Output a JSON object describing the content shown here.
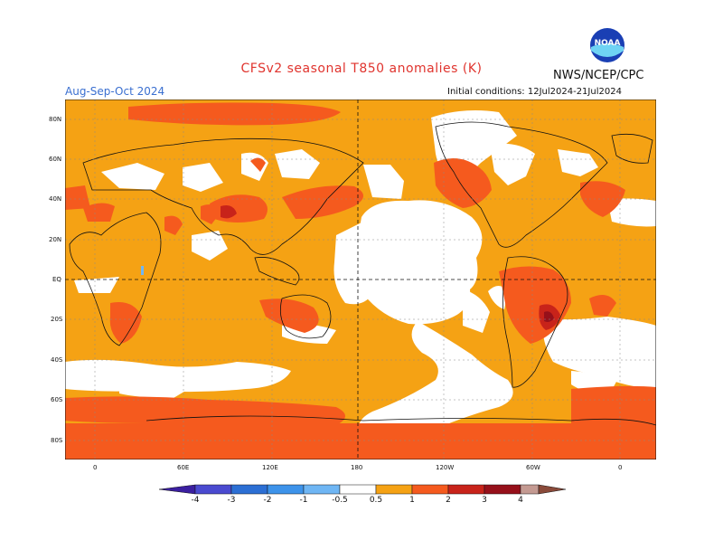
{
  "title": "CFSv2 seasonal T850 anomalies (K)",
  "organization": "NWS/NCEP/CPC",
  "logo_text": "NOAA",
  "period": "Aug-Sep-Oct 2024",
  "initial_conditions": "Initial conditions: 12Jul2024-21Jul2024",
  "lat_labels": [
    "80N",
    "60N",
    "40N",
    "20N",
    "EQ",
    "20S",
    "40S",
    "60S",
    "80S"
  ],
  "lon_labels": [
    "0",
    "60E",
    "120E",
    "180",
    "120W",
    "60W",
    "0"
  ],
  "colorbar": {
    "labels": [
      "-4",
      "-3",
      "-2",
      "-1",
      "-0.5",
      "0.5",
      "1",
      "2",
      "3",
      "4"
    ],
    "colors": [
      "#3b1fa0",
      "#4a4ad0",
      "#2c6fd4",
      "#3d93ea",
      "#6fb6f4",
      "#ffffff",
      "#f5a214",
      "#f55a1e",
      "#c8231a",
      "#96101a",
      "#c49a92",
      "#8a4a3a"
    ]
  },
  "colors": {
    "background_ocean": "#ffffff",
    "anomaly_0_5_1": "#f5a214",
    "anomaly_1_2": "#f55a1e",
    "anomaly_2_3": "#c8231a",
    "anomaly_3_4": "#96101a",
    "title": "#e0342e",
    "period": "#3a6fd0"
  }
}
